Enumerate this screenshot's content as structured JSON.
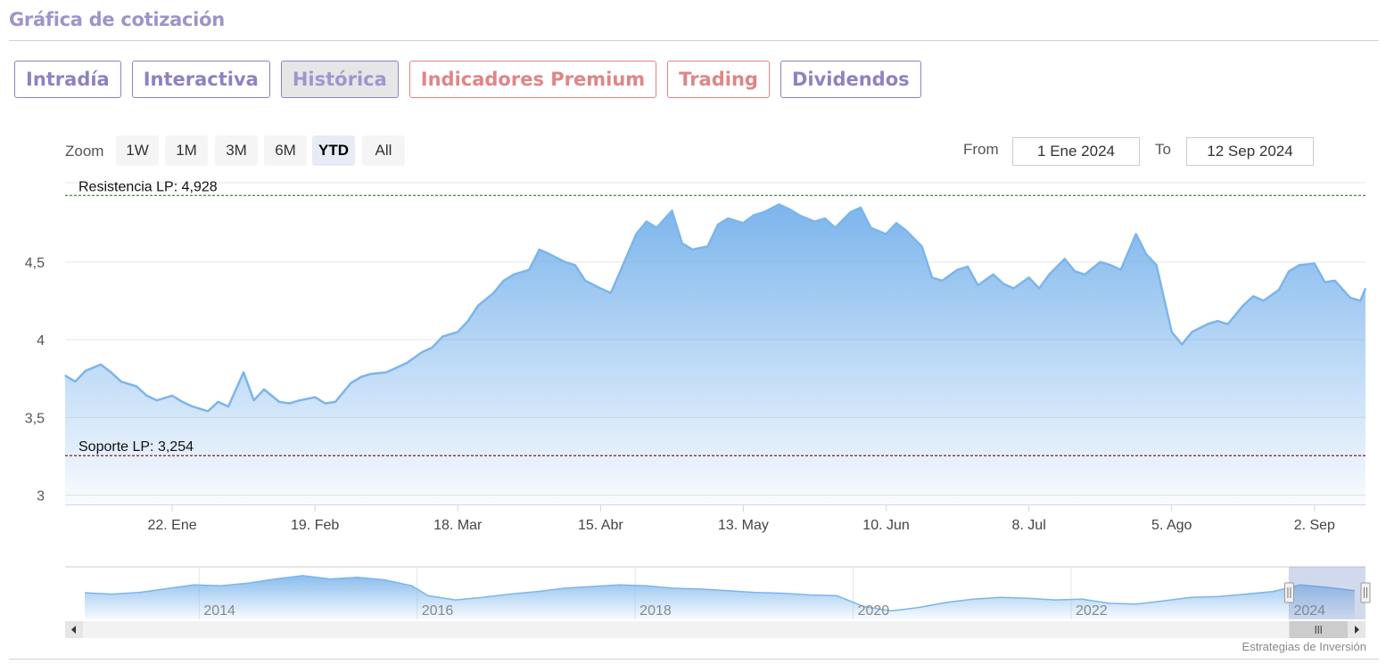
{
  "header": {
    "title": "Gráfica de cotización"
  },
  "tabs": [
    {
      "label": "Intradía",
      "style": "purple",
      "active": false
    },
    {
      "label": "Interactiva",
      "style": "purple",
      "active": false
    },
    {
      "label": "Histórica",
      "style": "purple",
      "active": true
    },
    {
      "label": "Indicadores Premium",
      "style": "red",
      "active": false
    },
    {
      "label": "Trading",
      "style": "red",
      "active": false
    },
    {
      "label": "Dividendos",
      "style": "purple",
      "active": false
    }
  ],
  "range_selector": {
    "zoom_label": "Zoom",
    "buttons": [
      "1W",
      "1M",
      "3M",
      "6M",
      "YTD",
      "All"
    ],
    "selected": "YTD",
    "from_label": "From",
    "from_value": "1 Ene 2024",
    "to_label": "To",
    "to_value": "12 Sep 2024"
  },
  "colors": {
    "accent_purple": "#8a84c2",
    "accent_red": "#e08585",
    "series_line": "#7cb5ec",
    "resistance_line": "#2e7d32",
    "support_line": "#8b1a1a"
  },
  "chart_data": {
    "type": "area",
    "y_tick_labels": [
      "3",
      "3,5",
      "4",
      "4,5"
    ],
    "y_ticks": [
      3,
      3.5,
      4,
      4.5
    ],
    "ylim": [
      2.94,
      5.01
    ],
    "x_tick_labels": [
      "22. Ene",
      "19. Feb",
      "18. Mar",
      "15. Abr",
      "13. May",
      "10. Jun",
      "8. Jul",
      "5. Ago",
      "2. Sep"
    ],
    "x_ticks": [
      "2024-01-22",
      "2024-02-19",
      "2024-03-18",
      "2024-04-15",
      "2024-05-13",
      "2024-06-10",
      "2024-07-08",
      "2024-08-05",
      "2024-09-02"
    ],
    "xlim": [
      "2024-01-01",
      "2024-09-12"
    ],
    "plot_lines": [
      {
        "label": "Resistencia LP: 4,928",
        "value": 4.928,
        "color": "#2e7d32"
      },
      {
        "label": "Soporte LP: 3,254",
        "value": 3.254,
        "color": "#8b1a1a"
      }
    ],
    "grid": true,
    "series": [
      {
        "values": [
          [
            "2024-01-01",
            3.77
          ],
          [
            "2024-01-03",
            3.73
          ],
          [
            "2024-01-05",
            3.8
          ],
          [
            "2024-01-08",
            3.84
          ],
          [
            "2024-01-10",
            3.79
          ],
          [
            "2024-01-12",
            3.73
          ],
          [
            "2024-01-15",
            3.7
          ],
          [
            "2024-01-17",
            3.64
          ],
          [
            "2024-01-19",
            3.61
          ],
          [
            "2024-01-22",
            3.64
          ],
          [
            "2024-01-24",
            3.6
          ],
          [
            "2024-01-26",
            3.57
          ],
          [
            "2024-01-29",
            3.54
          ],
          [
            "2024-01-31",
            3.6
          ],
          [
            "2024-02-02",
            3.57
          ],
          [
            "2024-02-05",
            3.79
          ],
          [
            "2024-02-07",
            3.61
          ],
          [
            "2024-02-09",
            3.68
          ],
          [
            "2024-02-12",
            3.6
          ],
          [
            "2024-02-14",
            3.59
          ],
          [
            "2024-02-16",
            3.61
          ],
          [
            "2024-02-19",
            3.63
          ],
          [
            "2024-02-21",
            3.59
          ],
          [
            "2024-02-23",
            3.6
          ],
          [
            "2024-02-26",
            3.72
          ],
          [
            "2024-02-28",
            3.76
          ],
          [
            "2024-03-01",
            3.78
          ],
          [
            "2024-03-04",
            3.79
          ],
          [
            "2024-03-06",
            3.82
          ],
          [
            "2024-03-08",
            3.85
          ],
          [
            "2024-03-11",
            3.92
          ],
          [
            "2024-03-13",
            3.95
          ],
          [
            "2024-03-15",
            4.02
          ],
          [
            "2024-03-18",
            4.05
          ],
          [
            "2024-03-20",
            4.12
          ],
          [
            "2024-03-22",
            4.22
          ],
          [
            "2024-03-25",
            4.3
          ],
          [
            "2024-03-27",
            4.38
          ],
          [
            "2024-03-29",
            4.42
          ],
          [
            "2024-04-01",
            4.45
          ],
          [
            "2024-04-03",
            4.58
          ],
          [
            "2024-04-05",
            4.55
          ],
          [
            "2024-04-08",
            4.5
          ],
          [
            "2024-04-10",
            4.48
          ],
          [
            "2024-04-12",
            4.38
          ],
          [
            "2024-04-15",
            4.33
          ],
          [
            "2024-04-17",
            4.3
          ],
          [
            "2024-04-19",
            4.45
          ],
          [
            "2024-04-22",
            4.68
          ],
          [
            "2024-04-24",
            4.76
          ],
          [
            "2024-04-26",
            4.72
          ],
          [
            "2024-04-29",
            4.83
          ],
          [
            "2024-05-01",
            4.62
          ],
          [
            "2024-05-03",
            4.58
          ],
          [
            "2024-05-06",
            4.6
          ],
          [
            "2024-05-08",
            4.74
          ],
          [
            "2024-05-10",
            4.78
          ],
          [
            "2024-05-13",
            4.75
          ],
          [
            "2024-05-15",
            4.8
          ],
          [
            "2024-05-17",
            4.82
          ],
          [
            "2024-05-20",
            4.87
          ],
          [
            "2024-05-22",
            4.84
          ],
          [
            "2024-05-24",
            4.8
          ],
          [
            "2024-05-27",
            4.76
          ],
          [
            "2024-05-29",
            4.78
          ],
          [
            "2024-05-31",
            4.72
          ],
          [
            "2024-06-03",
            4.82
          ],
          [
            "2024-06-05",
            4.85
          ],
          [
            "2024-06-07",
            4.72
          ],
          [
            "2024-06-10",
            4.68
          ],
          [
            "2024-06-12",
            4.75
          ],
          [
            "2024-06-14",
            4.7
          ],
          [
            "2024-06-17",
            4.6
          ],
          [
            "2024-06-19",
            4.4
          ],
          [
            "2024-06-21",
            4.38
          ],
          [
            "2024-06-24",
            4.45
          ],
          [
            "2024-06-26",
            4.47
          ],
          [
            "2024-06-28",
            4.35
          ],
          [
            "2024-07-01",
            4.42
          ],
          [
            "2024-07-03",
            4.36
          ],
          [
            "2024-07-05",
            4.33
          ],
          [
            "2024-07-08",
            4.4
          ],
          [
            "2024-07-10",
            4.33
          ],
          [
            "2024-07-12",
            4.42
          ],
          [
            "2024-07-15",
            4.52
          ],
          [
            "2024-07-17",
            4.44
          ],
          [
            "2024-07-19",
            4.42
          ],
          [
            "2024-07-22",
            4.5
          ],
          [
            "2024-07-24",
            4.48
          ],
          [
            "2024-07-26",
            4.45
          ],
          [
            "2024-07-29",
            4.68
          ],
          [
            "2024-07-31",
            4.55
          ],
          [
            "2024-08-02",
            4.48
          ],
          [
            "2024-08-05",
            4.05
          ],
          [
            "2024-08-07",
            3.97
          ],
          [
            "2024-08-09",
            4.05
          ],
          [
            "2024-08-12",
            4.1
          ],
          [
            "2024-08-14",
            4.12
          ],
          [
            "2024-08-16",
            4.1
          ],
          [
            "2024-08-19",
            4.22
          ],
          [
            "2024-08-21",
            4.28
          ],
          [
            "2024-08-23",
            4.25
          ],
          [
            "2024-08-26",
            4.32
          ],
          [
            "2024-08-28",
            4.44
          ],
          [
            "2024-08-30",
            4.48
          ],
          [
            "2024-09-02",
            4.49
          ],
          [
            "2024-09-04",
            4.37
          ],
          [
            "2024-09-06",
            4.38
          ],
          [
            "2024-09-09",
            4.27
          ],
          [
            "2024-09-11",
            4.25
          ],
          [
            "2024-09-12",
            4.33
          ]
        ]
      }
    ]
  },
  "navigator": {
    "year_labels": [
      "2014",
      "2016",
      "2018",
      "2020",
      "2022",
      "2024"
    ],
    "years": [
      2014,
      2016,
      2018,
      2020,
      2022,
      2024
    ],
    "xlim": [
      2012.77,
      2024.7
    ],
    "ylim": [
      0,
      1
    ],
    "values": [
      [
        2012.95,
        0.55
      ],
      [
        2013.2,
        0.52
      ],
      [
        2013.45,
        0.56
      ],
      [
        2013.7,
        0.65
      ],
      [
        2013.95,
        0.74
      ],
      [
        2014.2,
        0.72
      ],
      [
        2014.45,
        0.78
      ],
      [
        2014.7,
        0.88
      ],
      [
        2014.95,
        0.96
      ],
      [
        2015.2,
        0.88
      ],
      [
        2015.45,
        0.92
      ],
      [
        2015.7,
        0.86
      ],
      [
        2015.95,
        0.72
      ],
      [
        2016.1,
        0.48
      ],
      [
        2016.35,
        0.38
      ],
      [
        2016.6,
        0.44
      ],
      [
        2016.85,
        0.52
      ],
      [
        2017.1,
        0.58
      ],
      [
        2017.35,
        0.66
      ],
      [
        2017.6,
        0.7
      ],
      [
        2017.85,
        0.74
      ],
      [
        2018.1,
        0.72
      ],
      [
        2018.35,
        0.66
      ],
      [
        2018.6,
        0.64
      ],
      [
        2018.85,
        0.6
      ],
      [
        2019.1,
        0.56
      ],
      [
        2019.35,
        0.54
      ],
      [
        2019.6,
        0.5
      ],
      [
        2019.85,
        0.48
      ],
      [
        2020.1,
        0.22
      ],
      [
        2020.35,
        0.12
      ],
      [
        2020.6,
        0.2
      ],
      [
        2020.85,
        0.32
      ],
      [
        2021.1,
        0.4
      ],
      [
        2021.35,
        0.44
      ],
      [
        2021.6,
        0.42
      ],
      [
        2021.85,
        0.38
      ],
      [
        2022.1,
        0.4
      ],
      [
        2022.35,
        0.3
      ],
      [
        2022.6,
        0.28
      ],
      [
        2022.85,
        0.36
      ],
      [
        2023.1,
        0.44
      ],
      [
        2023.35,
        0.46
      ],
      [
        2023.6,
        0.52
      ],
      [
        2023.85,
        0.58
      ],
      [
        2024.1,
        0.74
      ],
      [
        2024.35,
        0.68
      ],
      [
        2024.6,
        0.6
      ]
    ],
    "selection": [
      2024.0,
      2024.7
    ]
  },
  "credits": "Estrategias de Inversión"
}
